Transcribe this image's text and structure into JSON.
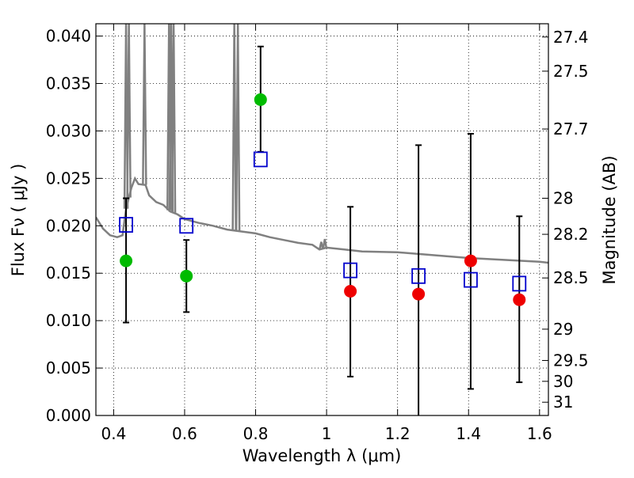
{
  "chart_data": {
    "type": "scatter",
    "xlabel": "Wavelength  λ (μm)",
    "ylabel": "Flux  Fν  ( μJy )",
    "y2label": "Magnitude (AB)",
    "xlim": [
      0.35,
      1.625
    ],
    "ylim": [
      0,
      0.0413
    ],
    "grid": true,
    "x_ticks": [
      0.4,
      0.6,
      0.8,
      1.0,
      1.2,
      1.4,
      1.6
    ],
    "x_tick_labels": [
      "0.4",
      "0.6",
      "0.8",
      "1",
      "1.2",
      "1.4",
      "1.6"
    ],
    "y_ticks": [
      0,
      0.005,
      0.01,
      0.015,
      0.02,
      0.025,
      0.03,
      0.035,
      0.04
    ],
    "y_tick_labels": [
      "0.000",
      "0.005",
      "0.010",
      "0.015",
      "0.020",
      "0.025",
      "0.030",
      "0.035",
      "0.040"
    ],
    "mag_ticks": [
      {
        "label": "27.4",
        "flux": 0.0399
      },
      {
        "label": "27.5",
        "flux": 0.0363
      },
      {
        "label": "27.7",
        "flux": 0.0302
      },
      {
        "label": "28",
        "flux": 0.0229
      },
      {
        "label": "28.2",
        "flux": 0.0191
      },
      {
        "label": "28.5",
        "flux": 0.0145
      },
      {
        "label": "29",
        "flux": 0.0091
      },
      {
        "label": "29.5",
        "flux": 0.0058
      },
      {
        "label": "30",
        "flux": 0.0036
      },
      {
        "label": "31",
        "flux": 0.0014
      }
    ],
    "colors": {
      "model": "#808080",
      "squares": "#0000cc",
      "green": "#00bb00",
      "red": "#ee0000",
      "errorbar": "#000000"
    },
    "model_spectrum": [
      [
        0.35,
        0.0209
      ],
      [
        0.37,
        0.0197
      ],
      [
        0.39,
        0.019
      ],
      [
        0.41,
        0.0188
      ],
      [
        0.425,
        0.019
      ],
      [
        0.435,
        0.0218
      ],
      [
        0.45,
        0.024
      ],
      [
        0.46,
        0.025
      ],
      [
        0.47,
        0.0244
      ],
      [
        0.49,
        0.0243
      ],
      [
        0.5,
        0.0232
      ],
      [
        0.52,
        0.0225
      ],
      [
        0.54,
        0.0222
      ],
      [
        0.56,
        0.0215
      ],
      [
        0.58,
        0.0212
      ],
      [
        0.6,
        0.0207
      ],
      [
        0.64,
        0.0203
      ],
      [
        0.68,
        0.02
      ],
      [
        0.72,
        0.0196
      ],
      [
        0.76,
        0.0194
      ],
      [
        0.8,
        0.0192
      ],
      [
        0.84,
        0.0188
      ],
      [
        0.88,
        0.0185
      ],
      [
        0.92,
        0.0182
      ],
      [
        0.96,
        0.018
      ],
      [
        0.98,
        0.0175
      ],
      [
        1.0,
        0.0177
      ],
      [
        1.05,
        0.0175
      ],
      [
        1.1,
        0.0173
      ],
      [
        1.2,
        0.0172
      ],
      [
        1.3,
        0.0169
      ],
      [
        1.4,
        0.0166
      ],
      [
        1.5,
        0.0164
      ],
      [
        1.6,
        0.0162
      ],
      [
        1.625,
        0.0161
      ]
    ],
    "emission_lines": [
      {
        "x": 0.435,
        "peak": 0.0413
      },
      {
        "x": 0.443,
        "peak": 0.0413
      },
      {
        "x": 0.487,
        "peak": 0.0413
      },
      {
        "x": 0.556,
        "peak": 0.0413
      },
      {
        "x": 0.562,
        "peak": 0.0413
      },
      {
        "x": 0.569,
        "peak": 0.0413
      },
      {
        "x": 0.74,
        "peak": 0.0413
      },
      {
        "x": 0.75,
        "peak": 0.0413
      },
      {
        "x": 0.985,
        "peak": 0.0183
      },
      {
        "x": 0.995,
        "peak": 0.0186
      }
    ],
    "series": [
      {
        "marker": "square",
        "points": [
          {
            "x": 0.435,
            "y": 0.0201
          },
          {
            "x": 0.605,
            "y": 0.02
          },
          {
            "x": 0.814,
            "y": 0.027
          },
          {
            "x": 1.067,
            "y": 0.0153
          },
          {
            "x": 1.259,
            "y": 0.0147
          },
          {
            "x": 1.406,
            "y": 0.0143
          },
          {
            "x": 1.543,
            "y": 0.0139
          }
        ]
      },
      {
        "marker": "circle-green",
        "points": [
          {
            "x": 0.435,
            "y": 0.0163,
            "err_lo": 0.0098,
            "err_hi": 0.0229
          },
          {
            "x": 0.605,
            "y": 0.0147,
            "err_lo": 0.0109,
            "err_hi": 0.0185
          },
          {
            "x": 0.814,
            "y": 0.0333,
            "err_lo": 0.0278,
            "err_hi": 0.0389
          }
        ]
      },
      {
        "marker": "circle-red",
        "points": [
          {
            "x": 1.067,
            "y": 0.0131,
            "err_lo": 0.0041,
            "err_hi": 0.022
          },
          {
            "x": 1.259,
            "y": 0.0128,
            "err_lo": -0.003,
            "err_hi": 0.0285
          },
          {
            "x": 1.406,
            "y": 0.0163,
            "err_lo": 0.0028,
            "err_hi": 0.0297
          },
          {
            "x": 1.543,
            "y": 0.0122,
            "err_lo": 0.0035,
            "err_hi": 0.021
          }
        ]
      }
    ]
  }
}
